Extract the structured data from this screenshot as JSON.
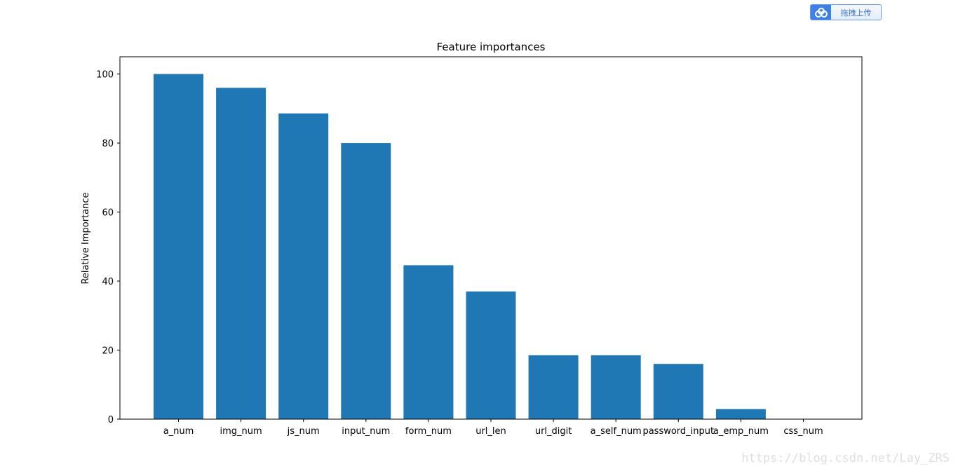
{
  "upload_button": {
    "label": "拖拽上传",
    "icon": "cloud-upload-icon"
  },
  "watermark": {
    "text": "https://blog.csdn.net/Lay_ZRS"
  },
  "chart_data": {
    "type": "bar",
    "title": "Feature importances",
    "xlabel": "",
    "ylabel": "Relative Importance",
    "categories": [
      "a_num",
      "img_num",
      "js_num",
      "input_num",
      "form_num",
      "url_len",
      "url_digit",
      "a_self_num",
      "password_input",
      "a_emp_num",
      "css_num"
    ],
    "values": [
      100,
      96,
      88.6,
      80,
      44.6,
      37,
      18.5,
      18.5,
      16,
      2.9,
      0
    ],
    "ylim": [
      0,
      105
    ],
    "yticks": [
      0,
      20,
      40,
      60,
      80,
      100
    ],
    "grid": false,
    "bar_color": "#1f77b4"
  }
}
